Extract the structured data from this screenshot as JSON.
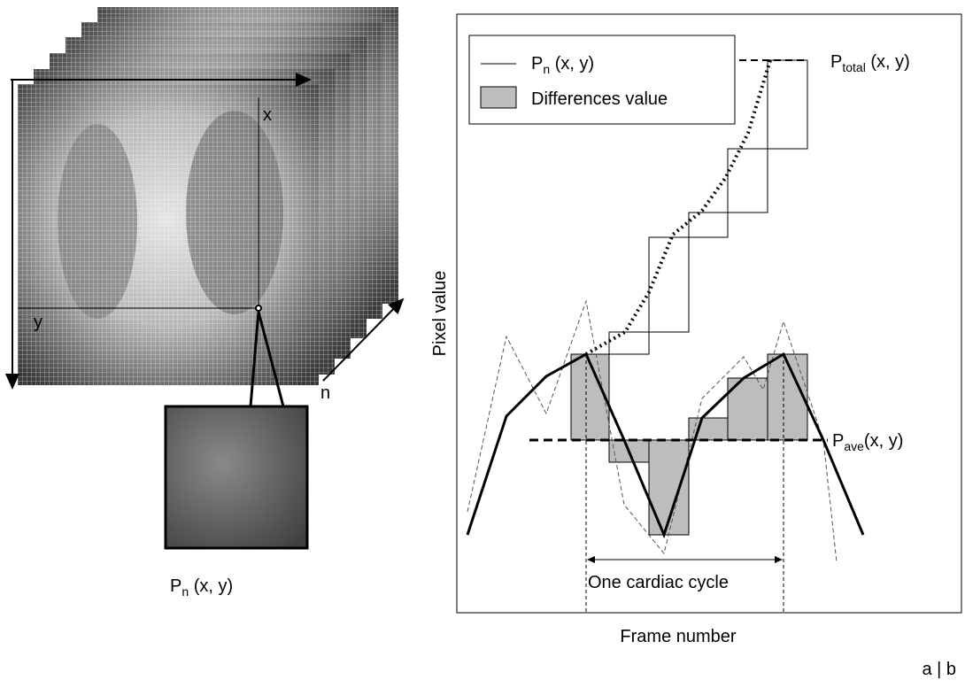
{
  "left_panel": {
    "axis_x": "x",
    "axis_y": "y",
    "axis_n": "n",
    "pixel_label": {
      "base": "P",
      "sub": "n",
      "rest": " (x, y)"
    }
  },
  "right_panel": {
    "legend": [
      {
        "base": "P",
        "sub": "n",
        "rest": " (x, y)"
      },
      {
        "text": "Differences value"
      }
    ],
    "total_label": {
      "base": "P",
      "sub": "total",
      "rest": " (x, y)"
    },
    "ave_label": {
      "base": "P",
      "sub": "ave",
      "rest": "(x, y)"
    },
    "y_axis_label": "Pixel value",
    "x_axis_label": "Frame number",
    "cycle_label": "One cardiac cycle"
  },
  "panel_tag": "a | b"
}
